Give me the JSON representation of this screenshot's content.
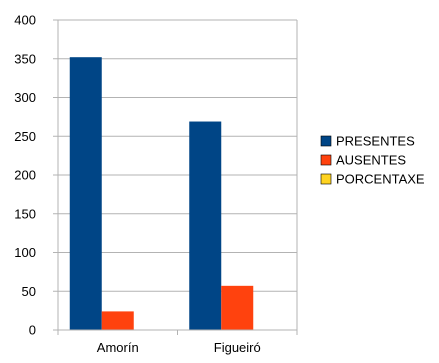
{
  "chart_data": {
    "type": "bar",
    "categories": [
      "Amorín",
      "Figueiró"
    ],
    "series": [
      {
        "name": "PRESENTES",
        "values": [
          352,
          269
        ],
        "color": "#004586"
      },
      {
        "name": "AUSENTES",
        "values": [
          24,
          57
        ],
        "color": "#FF420E"
      },
      {
        "name": "PORCENTAXE",
        "values": [
          0,
          0
        ],
        "color": "#FFD320"
      }
    ],
    "ylim": [
      0,
      400
    ],
    "yticks": [
      "0",
      "50",
      "100",
      "150",
      "200",
      "250",
      "300",
      "350",
      "400"
    ],
    "grid": true,
    "legend_position": "right"
  }
}
